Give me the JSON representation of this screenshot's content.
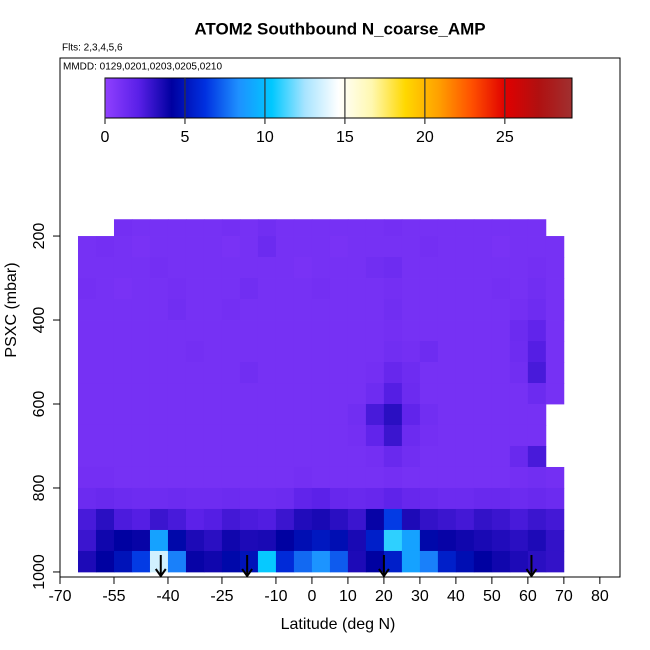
{
  "chart_data": {
    "type": "heatmap",
    "title": "ATOM2 Southbound N_coarse_AMP",
    "subtitle": "Flts: 2,3,4,5,6",
    "annotation": "MMDD: 0129,0201,0203,0205,0210",
    "xlabel": "Latitude (deg N)",
    "ylabel": "PSXC (mbar)",
    "xlim": [
      -70,
      85.6
    ],
    "ylim": [
      1012,
      -224
    ],
    "xticks": [
      -70,
      -55,
      -40,
      -25,
      -10,
      0,
      10,
      20,
      30,
      40,
      50,
      60,
      70,
      80
    ],
    "yticks": [
      200,
      400,
      600,
      800,
      1000
    ],
    "zlim": [
      0,
      29.2
    ],
    "zticks": [
      0,
      5,
      10,
      15,
      20,
      25
    ],
    "colormap": [
      "#9040ff",
      "#5a20e8",
      "#0000a0",
      "#0030e0",
      "#1e90ff",
      "#00c8ff",
      "#a8e4ff",
      "#ffffff",
      "#fff8b0",
      "#ffd800",
      "#ffa000",
      "#ff5000",
      "#e00000",
      "#b01010",
      "#a03030"
    ],
    "arrows_x": [
      -42,
      -18,
      20,
      61
    ],
    "x_edges": [
      -65,
      -60,
      -55,
      -50,
      -45,
      -40,
      -35,
      -30,
      -25,
      -20,
      -15,
      -10,
      -5,
      0,
      5,
      10,
      15,
      20,
      25,
      30,
      35,
      40,
      45,
      50,
      55,
      60,
      65,
      70
    ],
    "y_edges": [
      160,
      200,
      250,
      300,
      350,
      400,
      450,
      500,
      550,
      600,
      650,
      700,
      750,
      800,
      850,
      900,
      950,
      1000
    ],
    "z": [
      [
        null,
        null,
        1.1,
        1.0,
        1.0,
        1.0,
        1.0,
        1.0,
        1.1,
        1.0,
        1.2,
        1.0,
        1.0,
        1.0,
        1.0,
        1.0,
        1.0,
        1.1,
        1.0,
        1.0,
        1.0,
        1.0,
        1.0,
        1.0,
        1.0,
        1.0,
        null
      ],
      [
        1.0,
        1.1,
        1.0,
        0.9,
        1.0,
        1.0,
        1.0,
        1.0,
        0.9,
        1.0,
        1.4,
        1.0,
        1.0,
        1.0,
        0.9,
        1.0,
        1.0,
        1.0,
        1.0,
        1.1,
        1.0,
        1.0,
        1.0,
        0.9,
        1.0,
        1.0,
        1.0
      ],
      [
        1.0,
        1.0,
        1.0,
        1.0,
        1.1,
        1.0,
        1.0,
        1.0,
        1.0,
        1.0,
        1.0,
        1.0,
        0.9,
        1.0,
        1.0,
        1.0,
        1.2,
        1.3,
        1.0,
        1.0,
        1.0,
        1.0,
        1.0,
        1.0,
        1.0,
        1.1,
        1.0
      ],
      [
        1.1,
        1.0,
        0.9,
        1.0,
        1.0,
        1.1,
        1.0,
        1.0,
        1.0,
        1.2,
        1.0,
        1.0,
        1.0,
        1.1,
        1.0,
        1.0,
        1.0,
        1.1,
        1.0,
        1.0,
        1.0,
        1.0,
        1.0,
        1.1,
        1.0,
        1.2,
        1.0
      ],
      [
        1.0,
        1.0,
        1.0,
        1.0,
        1.0,
        1.2,
        1.0,
        1.0,
        1.1,
        1.0,
        1.0,
        1.0,
        1.0,
        1.0,
        1.0,
        1.0,
        1.0,
        1.2,
        1.0,
        1.0,
        1.0,
        1.0,
        1.0,
        1.0,
        1.1,
        1.3,
        1.0
      ],
      [
        1.0,
        1.0,
        1.0,
        1.0,
        1.0,
        1.0,
        1.0,
        1.0,
        1.0,
        1.0,
        1.0,
        1.0,
        1.0,
        1.0,
        1.0,
        1.0,
        1.0,
        1.1,
        1.0,
        1.0,
        1.0,
        1.0,
        1.0,
        1.0,
        1.4,
        1.8,
        1.0
      ],
      [
        1.0,
        1.0,
        1.0,
        1.0,
        1.0,
        1.0,
        1.1,
        1.0,
        1.0,
        1.0,
        1.0,
        1.0,
        1.0,
        1.0,
        1.0,
        1.0,
        1.0,
        1.2,
        1.1,
        1.3,
        1.0,
        1.0,
        1.0,
        1.0,
        1.3,
        2.2,
        1.0
      ],
      [
        1.0,
        1.0,
        1.0,
        1.0,
        1.0,
        1.0,
        1.0,
        1.0,
        1.0,
        1.2,
        1.0,
        1.0,
        1.0,
        1.0,
        1.0,
        1.0,
        1.1,
        1.6,
        1.3,
        1.0,
        1.0,
        1.0,
        1.0,
        1.0,
        1.2,
        2.5,
        1.0
      ],
      [
        1.0,
        1.0,
        1.0,
        1.0,
        1.0,
        1.0,
        1.0,
        1.0,
        1.0,
        1.0,
        1.0,
        1.0,
        1.0,
        1.0,
        1.0,
        1.0,
        1.3,
        2.2,
        1.4,
        1.0,
        1.0,
        1.0,
        1.0,
        1.0,
        1.0,
        1.4,
        1.0
      ],
      [
        1.0,
        1.0,
        1.0,
        1.0,
        1.0,
        1.0,
        1.0,
        1.0,
        1.0,
        1.0,
        1.0,
        1.0,
        1.0,
        1.0,
        1.0,
        1.2,
        2.5,
        3.2,
        1.8,
        1.2,
        1.0,
        1.0,
        1.0,
        1.0,
        1.0,
        1.0,
        null
      ],
      [
        1.0,
        1.0,
        1.0,
        1.0,
        1.0,
        1.0,
        1.0,
        1.0,
        1.0,
        1.0,
        1.0,
        1.0,
        1.0,
        1.0,
        1.0,
        1.1,
        1.8,
        2.8,
        1.4,
        1.1,
        1.0,
        1.0,
        1.0,
        1.0,
        1.0,
        1.0,
        null
      ],
      [
        1.0,
        1.0,
        1.0,
        1.0,
        1.0,
        1.0,
        1.0,
        1.0,
        1.0,
        1.0,
        1.0,
        1.0,
        1.0,
        1.0,
        1.0,
        1.0,
        1.1,
        1.5,
        1.2,
        1.0,
        1.0,
        1.0,
        1.0,
        1.0,
        1.5,
        2.5,
        null
      ],
      [
        1.1,
        1.1,
        1.0,
        1.0,
        1.0,
        1.0,
        1.0,
        1.0,
        1.0,
        1.0,
        1.0,
        1.0,
        1.1,
        1.0,
        1.0,
        1.0,
        1.0,
        1.1,
        1.0,
        1.0,
        1.0,
        1.0,
        1.0,
        1.0,
        1.1,
        1.2,
        1.1
      ],
      [
        1.4,
        1.5,
        1.4,
        1.3,
        1.3,
        1.4,
        1.3,
        1.3,
        1.4,
        1.3,
        1.3,
        1.4,
        1.8,
        2.0,
        1.6,
        1.5,
        1.6,
        1.9,
        1.6,
        1.5,
        1.4,
        1.4,
        1.5,
        1.5,
        1.4,
        1.5,
        1.4
      ],
      [
        2.5,
        3.2,
        2.4,
        2.2,
        2.8,
        2.5,
        2.0,
        2.2,
        2.6,
        2.4,
        2.3,
        2.8,
        3.4,
        3.6,
        3.2,
        2.8,
        4.0,
        6.5,
        3.5,
        3.0,
        2.8,
        2.6,
        3.0,
        2.8,
        2.5,
        2.8,
        2.6
      ],
      [
        2.8,
        3.8,
        4.2,
        4.0,
        9.0,
        4.5,
        3.5,
        3.2,
        3.8,
        3.5,
        3.6,
        4.2,
        4.8,
        5.2,
        4.8,
        3.6,
        5.5,
        11.0,
        9.0,
        4.5,
        4.0,
        3.8,
        3.6,
        3.4,
        3.2,
        3.5,
        3.0
      ],
      [
        3.5,
        4.2,
        5.0,
        6.5,
        13.5,
        8.0,
        4.0,
        3.8,
        4.5,
        5.0,
        10.5,
        6.0,
        7.5,
        8.5,
        7.2,
        3.5,
        4.2,
        5.5,
        9.0,
        8.0,
        5.5,
        4.8,
        4.2,
        3.8,
        3.5,
        3.2,
        3.0
      ]
    ]
  }
}
